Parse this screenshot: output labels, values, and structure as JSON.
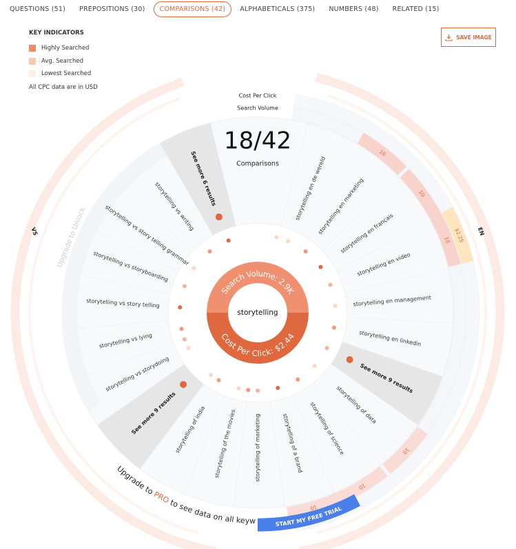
{
  "tabs": [
    "QUESTIONS (51)",
    "PREPOSITIONS (30)",
    "COMPARISONS (42)",
    "ALPHABETICALS (375)",
    "NUMBERS (48)",
    "RELATED (15)"
  ],
  "legend": {
    "title": "KEY INDICATORS",
    "items": [
      "Highly Searched",
      "Avg. Searched",
      "Lowest Searched"
    ],
    "note": "All CPC data are in USD"
  },
  "save_button": "SAVE IMAGE",
  "wheel": {
    "ring_labels": [
      "Cost Per Click",
      "Search Volume"
    ],
    "count": "18/42",
    "count_label": "Comparisons",
    "keyword": "storytelling",
    "search_volume": "Search Volume: 2.9K",
    "cost_per_click": "Cost Per Click: $2.44"
  },
  "groups": {
    "vs": {
      "label": "VS",
      "locked": "Upgrade to Unlock",
      "see_more": "See more 6 results",
      "keywords": [
        "storytelling vs storydoing",
        "storytelling vs lying",
        "storytelling vs story telling",
        "storytelling vs storyboarding",
        "storytelling vs story telling grammar",
        "storytelling vs writing"
      ]
    },
    "en": {
      "label": "EN",
      "see_more": "See more 9 results",
      "keywords": [
        "storytelling en de wereld",
        "storytelling en marketing",
        "storytelling en français",
        "storytelling en video",
        "storytelling en management",
        "storytelling en linkedin"
      ],
      "search_volume": [
        "10",
        "10",
        "10"
      ],
      "cost_per_click": [
        "$2.25"
      ]
    },
    "of": {
      "see_more": "See more 9 results",
      "keywords": [
        "storytelling of data",
        "storytelling of science",
        "storytelling of a brand",
        "storytelling of marketing",
        "storytelling of the movies",
        "storytelling of india"
      ],
      "search_volume": [
        "10",
        "10",
        "10"
      ]
    }
  },
  "upgrade": {
    "text_before": "Upgrade to ",
    "pro": "PRO",
    "text_after": " to see data on all keywords",
    "button": "START MY FREE TRIAL"
  }
}
